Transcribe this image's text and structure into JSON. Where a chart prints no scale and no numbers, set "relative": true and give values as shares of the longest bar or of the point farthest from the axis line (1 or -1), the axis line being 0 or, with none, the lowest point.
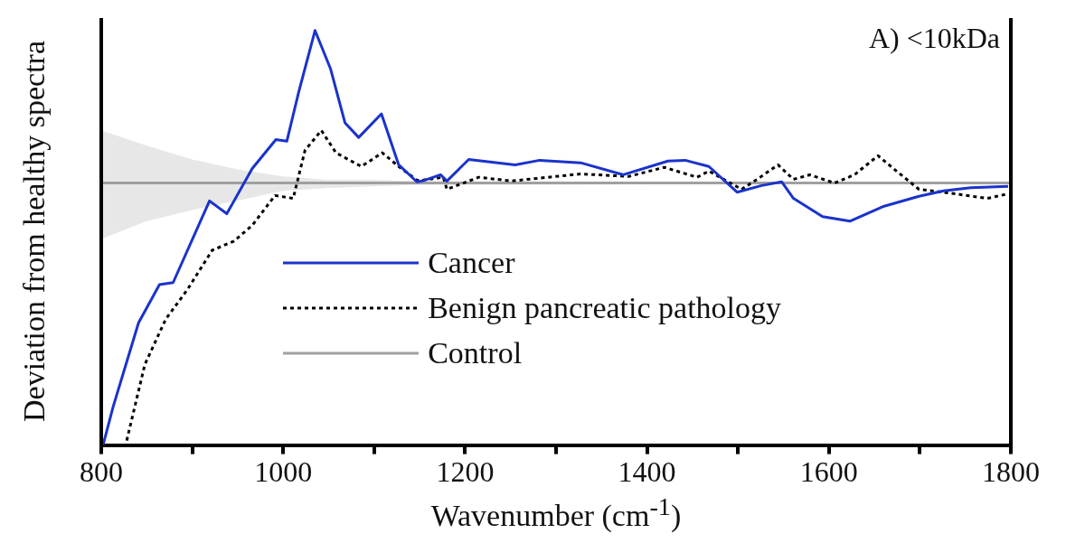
{
  "chart_data": {
    "type": "line",
    "relative": true,
    "xlabel": "Wavenumber (cm$^{-1}$)",
    "ylabel": "Deviation from healthy spectra",
    "annotations": [
      "A) <10kDa"
    ],
    "xlim": [
      800,
      1800
    ],
    "xticks": [
      800,
      {
        "value": 900,
        "label": null
      },
      1000,
      {
        "value": 1100,
        "label": null
      },
      1200,
      {
        "value": 1300,
        "label": null
      },
      1400,
      {
        "value": 1500,
        "label": null
      },
      1600,
      {
        "value": 1700,
        "label": null
      },
      1800
    ],
    "grid": false,
    "legend": "center left",
    "series": [
      {
        "name": "Cancer",
        "color": "#1a33cc",
        "line_style": "solid",
        "x": [
          802,
          813,
          841,
          864,
          879,
          919,
          938,
          966,
          992,
          1004,
          1017,
          1035,
          1052,
          1068,
          1083,
          1108,
          1127,
          1147,
          1153,
          1173,
          1180,
          1204,
          1255,
          1282,
          1327,
          1374,
          1423,
          1442,
          1468,
          1499,
          1526,
          1548,
          1561,
          1593,
          1623,
          1659,
          1699,
          1726,
          1756,
          1797
        ],
        "values": [
          0,
          0.092,
          0.295,
          0.387,
          0.392,
          0.589,
          0.558,
          0.667,
          0.737,
          0.733,
          0.851,
          1,
          0.908,
          0.777,
          0.742,
          0.799,
          0.676,
          0.635,
          0.637,
          0.652,
          0.637,
          0.689,
          0.676,
          0.687,
          0.681,
          0.652,
          0.685,
          0.687,
          0.672,
          0.61,
          0.626,
          0.635,
          0.595,
          0.551,
          0.54,
          0.575,
          0.6,
          0.613,
          0.621,
          0.624
        ]
      },
      {
        "name": "Benign pancreatic pathology",
        "color": "#000000",
        "line_style": "dotted",
        "x": [
          828,
          848,
          871,
          895,
          922,
          946,
          966,
          991,
          1011,
          1024,
          1042,
          1058,
          1086,
          1109,
          1127,
          1147,
          1153,
          1176,
          1180,
          1215,
          1251,
          1327,
          1380,
          1419,
          1455,
          1468,
          1504,
          1521,
          1544,
          1561,
          1579,
          1606,
          1628,
          1654,
          1677,
          1699,
          1739,
          1774,
          1797
        ],
        "values": [
          0.011,
          0.195,
          0.304,
          0.376,
          0.47,
          0.492,
          0.53,
          0.602,
          0.595,
          0.711,
          0.759,
          0.705,
          0.672,
          0.705,
          0.672,
          0.639,
          0.639,
          0.646,
          0.617,
          0.646,
          0.637,
          0.654,
          0.648,
          0.67,
          0.646,
          0.661,
          0.617,
          0.641,
          0.676,
          0.641,
          0.652,
          0.632,
          0.652,
          0.698,
          0.656,
          0.617,
          0.606,
          0.595,
          0.606
        ]
      },
      {
        "name": "Control",
        "color": "#a0a0a0",
        "line_style": "solid",
        "x": [
          800,
          850,
          900,
          950,
          1000,
          1050,
          1100,
          1150,
          1800
        ],
        "values": [
          0.632,
          0.632,
          0.632,
          0.632,
          0.632,
          0.632,
          0.632,
          0.632,
          0.632
        ],
        "upper": [
          0.759,
          0.722,
          0.689,
          0.665,
          0.648,
          0.64,
          0.64,
          0.636,
          0.634
        ],
        "lower": [
          0.497,
          0.54,
          0.567,
          0.59,
          0.613,
          0.62,
          0.624,
          0.628,
          0.63
        ]
      }
    ]
  }
}
